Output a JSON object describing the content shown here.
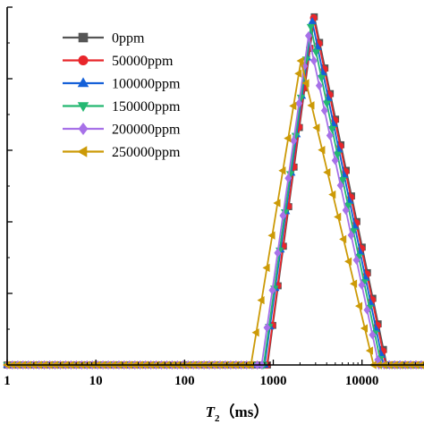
{
  "chart_data": {
    "type": "line",
    "xscale": "log",
    "xlim": [
      1,
      50000
    ],
    "ylim": [
      0,
      1
    ],
    "xlabel": {
      "main": "T",
      "sub": "2",
      "unit": "（ms）"
    },
    "ylabel": "",
    "x_ticks": [
      {
        "value": 1,
        "label": "1"
      },
      {
        "value": 10,
        "label": "10"
      },
      {
        "value": 100,
        "label": "100"
      },
      {
        "value": 1000,
        "label": "1000"
      },
      {
        "value": 10000,
        "label": "10000"
      }
    ],
    "y_major_ticks": [
      0.2,
      0.4,
      0.6,
      0.8,
      1.0
    ],
    "y_minor_ticks": [
      0.1,
      0.3,
      0.5,
      0.7,
      0.9
    ],
    "legend_position": "top-left",
    "series": [
      {
        "name": "0ppm",
        "color": "#555555",
        "marker": "square",
        "T_start": 860,
        "T_peak": 2900,
        "T_end": 19000,
        "peak": 0.973
      },
      {
        "name": "50000ppm",
        "color": "#e8262b",
        "marker": "circle",
        "T_start": 850,
        "T_peak": 2850,
        "T_end": 18500,
        "peak": 0.97
      },
      {
        "name": "100000ppm",
        "color": "#1560d8",
        "marker": "triangle-up",
        "T_start": 800,
        "T_peak": 2750,
        "T_end": 17500,
        "peak": 0.96
      },
      {
        "name": "150000ppm",
        "color": "#24b872",
        "marker": "triangle-down",
        "T_start": 780,
        "T_peak": 2650,
        "T_end": 16500,
        "peak": 0.945
      },
      {
        "name": "200000ppm",
        "color": "#a771e8",
        "marker": "diamond",
        "T_start": 740,
        "T_peak": 2500,
        "T_end": 15500,
        "peak": 0.92
      },
      {
        "name": "250000ppm",
        "color": "#cc9a07",
        "marker": "triangle-left",
        "T_start": 560,
        "T_peak": 2050,
        "T_end": 13500,
        "peak": 0.85
      }
    ]
  }
}
